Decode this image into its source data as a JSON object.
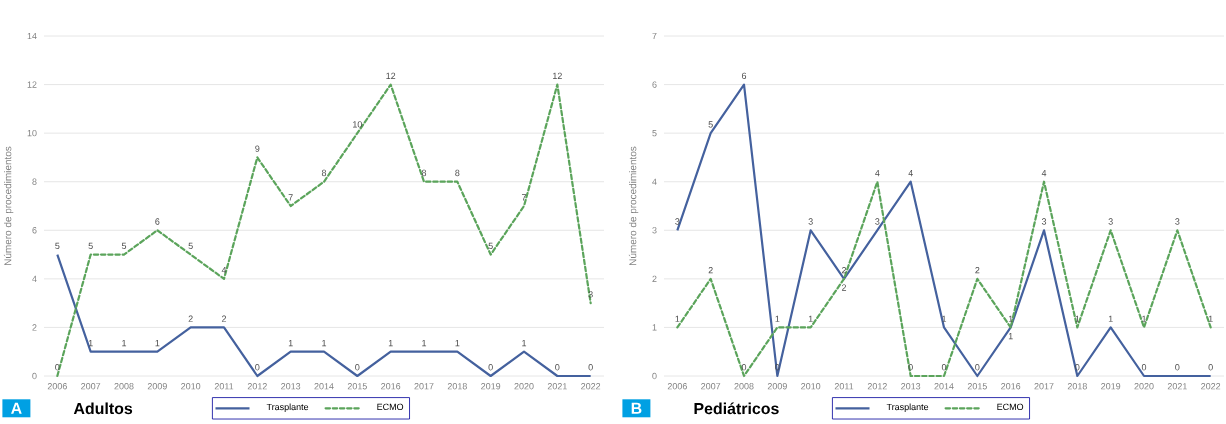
{
  "chart_data": [
    {
      "type": "line",
      "title": "Adultos",
      "annotations": [
        "A"
      ],
      "ylabel": "Número de procedimientos",
      "categories": [
        "2006",
        "2007",
        "2008",
        "2009",
        "2010",
        "2011",
        "2012",
        "2013",
        "2014",
        "2015",
        "2016",
        "2017",
        "2018",
        "2019",
        "2020",
        "2021",
        "2022"
      ],
      "series": [
        {
          "name": "Trasplante",
          "color": "#44619e",
          "line_style": "solid",
          "values": [
            5,
            1,
            1,
            1,
            2,
            2,
            0,
            1,
            1,
            0,
            1,
            1,
            1,
            0,
            1,
            0,
            0
          ]
        },
        {
          "name": "ECMO",
          "color": "#5ba45b",
          "line_style": "dashed",
          "values": [
            0,
            5,
            5,
            6,
            5,
            4,
            9,
            7,
            8,
            10,
            12,
            8,
            8,
            5,
            7,
            12,
            3
          ]
        }
      ],
      "ylim": [
        0,
        14
      ],
      "yticks": [
        0,
        2,
        4,
        6,
        8,
        10,
        12,
        14
      ],
      "grid": "y",
      "legend": "bottom",
      "data_labels": true
    },
    {
      "type": "line",
      "title": "Pediátricos",
      "annotations": [
        "B"
      ],
      "ylabel": "Número de procedimientos",
      "categories": [
        "2006",
        "2007",
        "2008",
        "2009",
        "2010",
        "2011",
        "2012",
        "2013",
        "2014",
        "2015",
        "2016",
        "2017",
        "2018",
        "2019",
        "2020",
        "2021",
        "2022"
      ],
      "series": [
        {
          "name": "Trasplante",
          "color": "#44619e",
          "line_style": "solid",
          "values": [
            3,
            5,
            6,
            0,
            3,
            2,
            3,
            4,
            1,
            0,
            1,
            3,
            0,
            1,
            0,
            0,
            0
          ]
        },
        {
          "name": "ECMO",
          "color": "#5ba45b",
          "line_style": "dashed",
          "values": [
            1,
            2,
            0,
            1,
            1,
            2,
            4,
            0,
            0,
            2,
            1,
            4,
            1,
            3,
            1,
            3,
            1
          ]
        }
      ],
      "ylim": [
        0,
        7
      ],
      "yticks": [
        0,
        1,
        2,
        3,
        4,
        5,
        6,
        7
      ],
      "grid": "y",
      "legend": "bottom",
      "data_labels": true
    }
  ]
}
